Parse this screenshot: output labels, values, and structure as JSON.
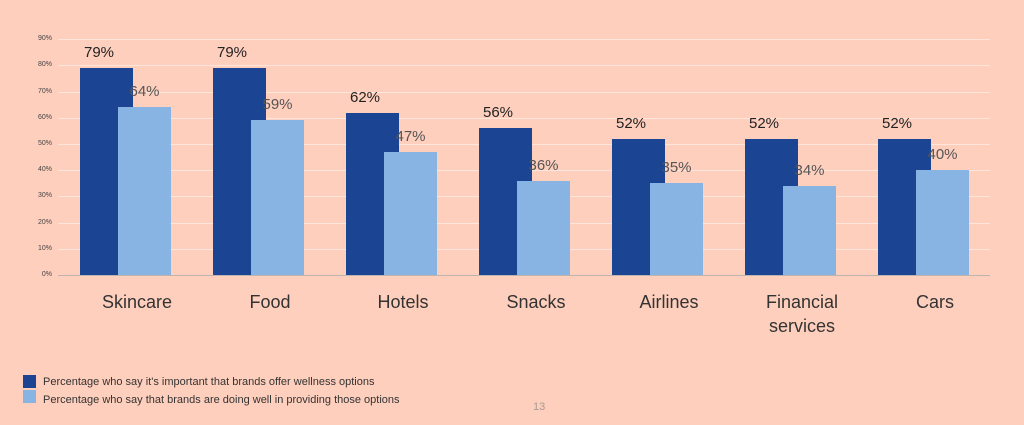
{
  "chart_data": {
    "type": "bar",
    "title": "",
    "xlabel": "",
    "ylabel": "",
    "ylim": [
      0,
      90
    ],
    "yticks": [
      "0%",
      "10%",
      "20%",
      "30%",
      "40%",
      "50%",
      "60%",
      "70%",
      "80%",
      "90%"
    ],
    "grid": true,
    "legend_position": "bottom-left",
    "categories": [
      "Skincare",
      "Food",
      "Hotels",
      "Snacks",
      "Airlines",
      "Financial services",
      "Cars"
    ],
    "series": [
      {
        "name": "Percentage who say it's important that brands offer wellness options",
        "color": "#1b4592",
        "values": [
          79,
          79,
          62,
          56,
          52,
          52,
          52
        ],
        "labels": [
          "79%",
          "79%",
          "62%",
          "56%",
          "52%",
          "52%",
          "52%"
        ]
      },
      {
        "name": "Percentage who say that brands are doing well in providing those options",
        "color": "#87b4e2",
        "values": [
          64,
          59,
          47,
          36,
          35,
          34,
          40
        ],
        "labels": [
          "64%",
          "59%",
          "47%",
          "36%",
          "35%",
          "34%",
          "40%"
        ]
      }
    ]
  },
  "category_lines": [
    [
      "Skincare"
    ],
    [
      "Food"
    ],
    [
      "Hotels"
    ],
    [
      "Snacks"
    ],
    [
      "Airlines"
    ],
    [
      "Financial",
      "services"
    ],
    [
      "Cars"
    ]
  ],
  "legend": [
    {
      "label": "Percentage who say it's important that brands offer wellness options",
      "color": "#1b4592"
    },
    {
      "label": "Percentage who say that brands are doing well in providing those options",
      "color": "#87b4e2"
    }
  ],
  "page_number": "13",
  "colors": {
    "background": "#ffcfbd",
    "dark": "#1b4592",
    "light": "#87b4e2"
  }
}
